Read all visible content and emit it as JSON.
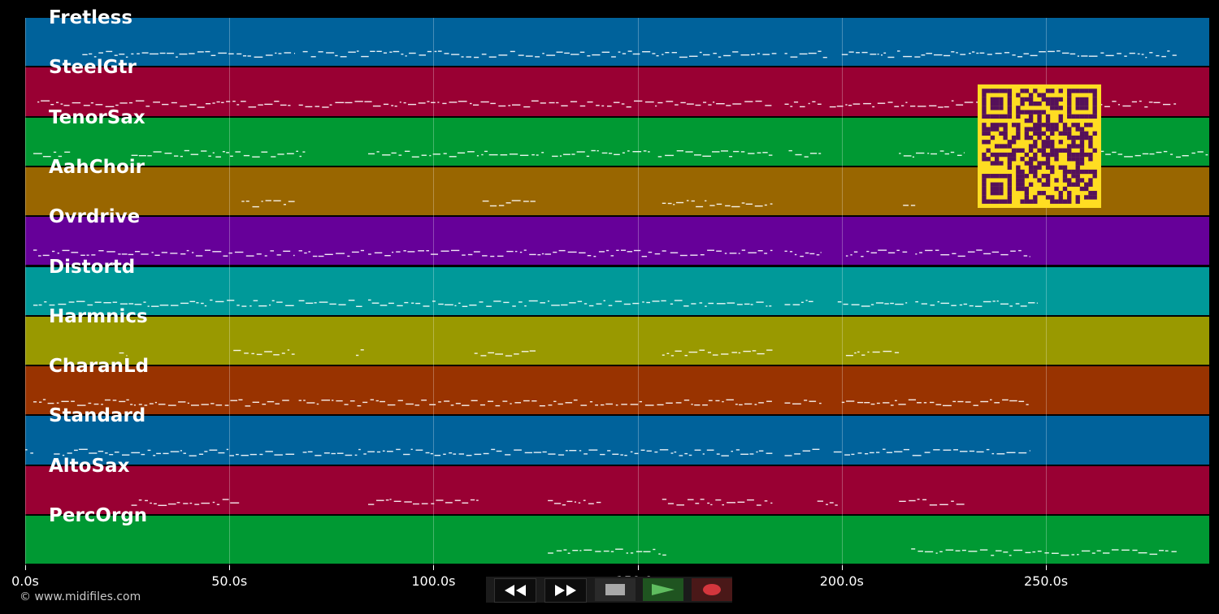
{
  "tracks": [
    {
      "name": "Fretless",
      "color": "#00629b",
      "segments": [
        [
          14,
          66
        ],
        [
          68,
          184
        ],
        [
          186,
          197
        ],
        [
          200,
          282
        ]
      ]
    },
    {
      "name": "SteelGtr",
      "color": "#990033",
      "segments": [
        [
          3,
          65
        ],
        [
          67,
          183
        ],
        [
          186,
          195
        ],
        [
          197,
          282
        ]
      ]
    },
    {
      "name": "TenorSax",
      "color": "#009933",
      "segments": [
        [
          2,
          11
        ],
        [
          26,
          69
        ],
        [
          84,
          127
        ],
        [
          129,
          153
        ],
        [
          155,
          183
        ],
        [
          187,
          195
        ],
        [
          214,
          230
        ],
        [
          238,
          290
        ]
      ]
    },
    {
      "name": "AahChoir",
      "color": "#996600",
      "segments": [
        [
          53,
          66
        ],
        [
          112,
          125
        ],
        [
          156,
          183
        ],
        [
          215,
          218
        ]
      ]
    },
    {
      "name": "Ovrdrive",
      "color": "#660099",
      "segments": [
        [
          2,
          66
        ],
        [
          67,
          83
        ],
        [
          84,
          157
        ],
        [
          158,
          183
        ],
        [
          186,
          195
        ],
        [
          201,
          216
        ],
        [
          218,
          246
        ]
      ]
    },
    {
      "name": "Distortd",
      "color": "#009999",
      "segments": [
        [
          2,
          66
        ],
        [
          67,
          83
        ],
        [
          84,
          157
        ],
        [
          158,
          183
        ],
        [
          186,
          193
        ],
        [
          199,
          216
        ],
        [
          218,
          248
        ]
      ]
    },
    {
      "name": "Harmnics",
      "color": "#999900",
      "segments": [
        [
          23,
          25
        ],
        [
          51,
          66
        ],
        [
          81,
          83
        ],
        [
          110,
          125
        ],
        [
          156,
          183
        ],
        [
          201,
          214
        ]
      ]
    },
    {
      "name": "CharanLd",
      "color": "#993300",
      "segments": [
        [
          2,
          65
        ],
        [
          67,
          183
        ],
        [
          186,
          195
        ],
        [
          200,
          246
        ]
      ]
    },
    {
      "name": "Standard",
      "color": "#00629b",
      "segments": [
        [
          0,
          2
        ],
        [
          7,
          66
        ],
        [
          68,
          183
        ],
        [
          186,
          195
        ],
        [
          198,
          246
        ]
      ]
    },
    {
      "name": "AltoSax",
      "color": "#990033",
      "segments": [
        [
          26,
          53
        ],
        [
          84,
          111
        ],
        [
          128,
          141
        ],
        [
          156,
          183
        ],
        [
          194,
          199
        ],
        [
          214,
          230
        ]
      ]
    },
    {
      "name": "PercOrgn",
      "color": "#009933",
      "segments": [
        [
          128,
          157
        ],
        [
          217,
          282
        ]
      ]
    }
  ],
  "axis": {
    "unit": "s",
    "range": [
      0,
      290
    ],
    "ticks": [
      {
        "value": 0,
        "label": "0.0s"
      },
      {
        "value": 50,
        "label": "50.0s"
      },
      {
        "value": 100,
        "label": "100.0s"
      },
      {
        "value": 150,
        "label": "150.0s"
      },
      {
        "value": 200,
        "label": "200.0s"
      },
      {
        "value": 250,
        "label": "250.0s"
      }
    ]
  },
  "copyright": "© www.midifiles.com",
  "transport": [
    {
      "name": "rewind-button",
      "icon": "rewind-icon"
    },
    {
      "name": "fast-forward-button",
      "icon": "fast-forward-icon"
    },
    {
      "name": "stop-button",
      "icon": "stop-icon"
    },
    {
      "name": "play-button",
      "icon": "play-icon"
    },
    {
      "name": "record-button",
      "icon": "record-icon"
    }
  ],
  "qr_colors": {
    "bg": "#ffdd22",
    "fg": "#55115a"
  }
}
